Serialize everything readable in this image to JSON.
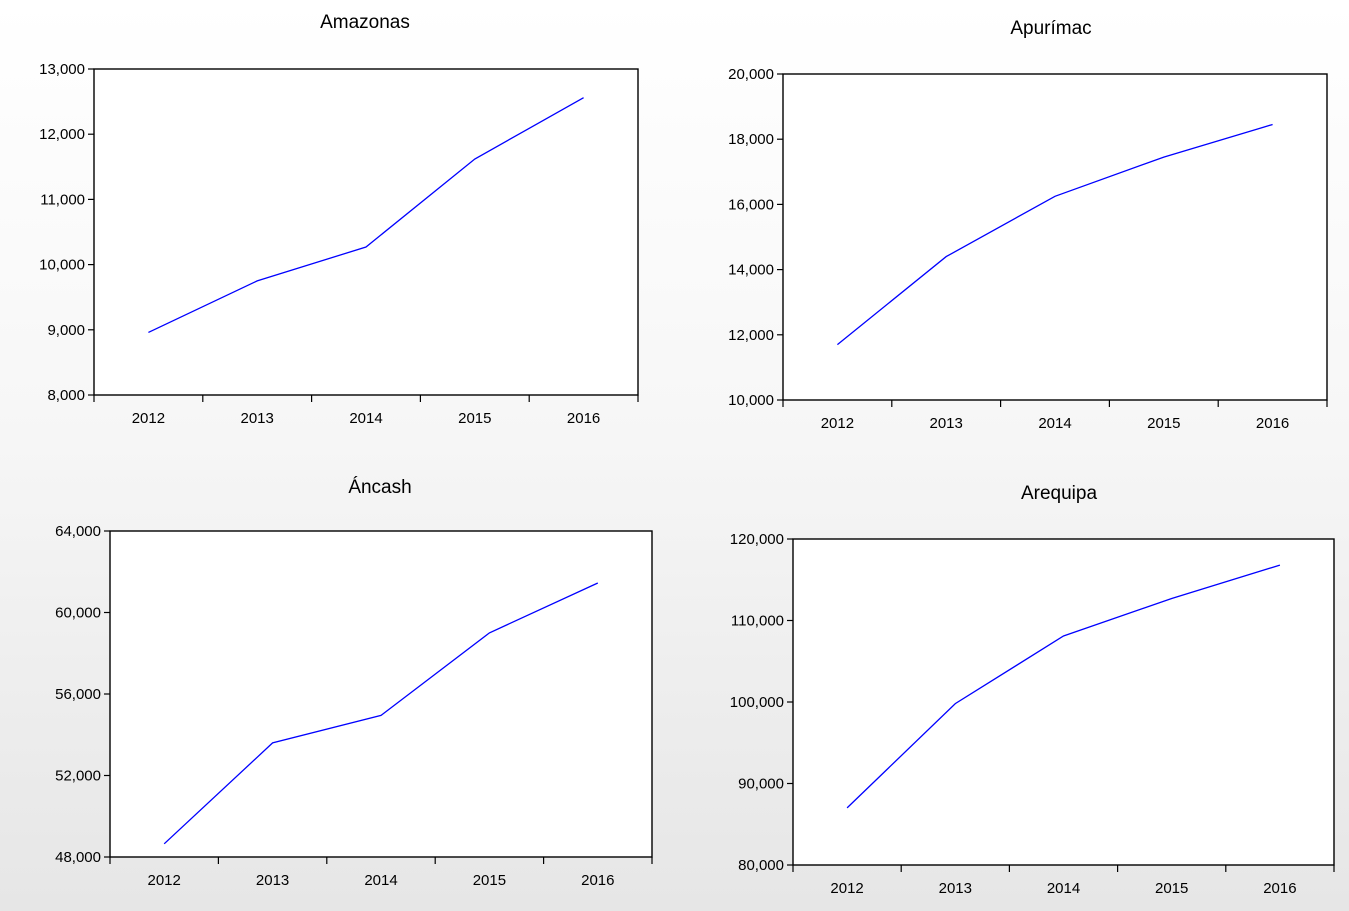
{
  "chart_data": [
    {
      "type": "line",
      "title": "Amazonas",
      "xlabel": "",
      "ylabel": "",
      "categories": [
        "2012",
        "2013",
        "2014",
        "2015",
        "2016"
      ],
      "series": [
        {
          "values": [
            8960,
            9750,
            10270,
            11620,
            12560
          ]
        }
      ],
      "ylim": [
        8000,
        13000
      ],
      "yticks": [
        8000,
        9000,
        10000,
        11000,
        12000,
        13000
      ],
      "ytick_labels": [
        "8,000",
        "9,000",
        "10,000",
        "11,000",
        "12,000",
        "13,000"
      ],
      "grid": false,
      "line_color": "#0000ff"
    },
    {
      "type": "line",
      "title": "Apurímac",
      "xlabel": "",
      "ylabel": "",
      "categories": [
        "2012",
        "2013",
        "2014",
        "2015",
        "2016"
      ],
      "series": [
        {
          "values": [
            11700,
            14400,
            16250,
            17450,
            18450
          ]
        }
      ],
      "ylim": [
        10000,
        20000
      ],
      "yticks": [
        10000,
        12000,
        14000,
        16000,
        18000,
        20000
      ],
      "ytick_labels": [
        "10,000",
        "12,000",
        "14,000",
        "16,000",
        "18,000",
        "20,000"
      ],
      "grid": false,
      "line_color": "#0000ff"
    },
    {
      "type": "line",
      "title": "Áncash",
      "xlabel": "",
      "ylabel": "",
      "categories": [
        "2012",
        "2013",
        "2014",
        "2015",
        "2016"
      ],
      "series": [
        {
          "values": [
            48650,
            53600,
            54950,
            59000,
            61450
          ]
        }
      ],
      "ylim": [
        48000,
        64000
      ],
      "yticks": [
        48000,
        52000,
        56000,
        60000,
        64000
      ],
      "ytick_labels": [
        "48,000",
        "52,000",
        "56,000",
        "60,000",
        "64,000"
      ],
      "grid": false,
      "line_color": "#0000ff"
    },
    {
      "type": "line",
      "title": "Arequipa",
      "xlabel": "",
      "ylabel": "",
      "categories": [
        "2012",
        "2013",
        "2014",
        "2015",
        "2016"
      ],
      "series": [
        {
          "values": [
            87000,
            99800,
            108100,
            112700,
            116800
          ]
        }
      ],
      "ylim": [
        80000,
        120000
      ],
      "yticks": [
        80000,
        90000,
        100000,
        110000,
        120000
      ],
      "ytick_labels": [
        "80,000",
        "90,000",
        "100,000",
        "110,000",
        "120,000"
      ],
      "grid": false,
      "line_color": "#0000ff"
    }
  ]
}
